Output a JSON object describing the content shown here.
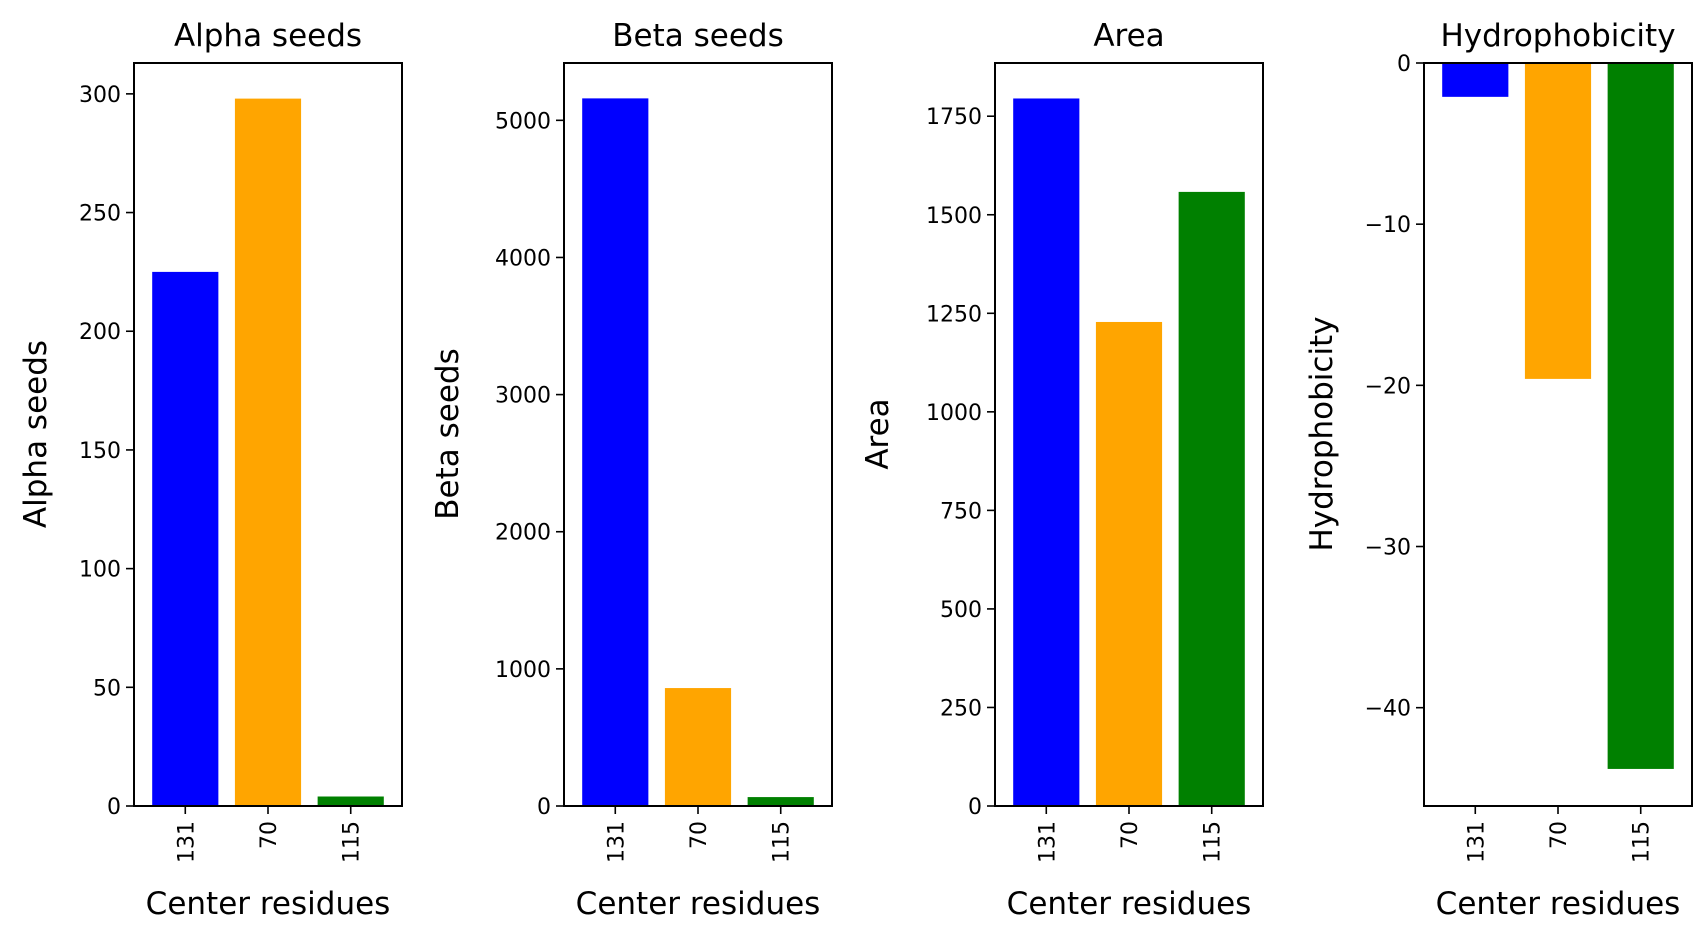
{
  "figure": {
    "categories": [
      "131",
      "70",
      "115"
    ],
    "bar_colors": [
      "#0000ff",
      "#ffa500",
      "#008000"
    ]
  },
  "chart_data": [
    {
      "type": "bar",
      "title": "Alpha seeds",
      "xlabel": "Center residues",
      "ylabel": "Alpha seeds",
      "categories": [
        "131",
        "70",
        "115"
      ],
      "values": [
        225,
        298,
        4
      ],
      "ylim": [
        0,
        313
      ],
      "yticks": [
        0,
        50,
        100,
        150,
        200,
        250,
        300
      ],
      "ytick_labels": [
        "0",
        "50",
        "100",
        "150",
        "200",
        "250",
        "300"
      ],
      "colors": [
        "#0000ff",
        "#ffa500",
        "#008000"
      ],
      "grid": false
    },
    {
      "type": "bar",
      "title": "Beta seeds",
      "xlabel": "Center residues",
      "ylabel": "Beta seeds",
      "categories": [
        "131",
        "70",
        "115"
      ],
      "values": [
        5160,
        860,
        65
      ],
      "ylim": [
        0,
        5418
      ],
      "yticks": [
        0,
        1000,
        2000,
        3000,
        4000,
        5000
      ],
      "ytick_labels": [
        "0",
        "1000",
        "2000",
        "3000",
        "4000",
        "5000"
      ],
      "colors": [
        "#0000ff",
        "#ffa500",
        "#008000"
      ],
      "grid": false
    },
    {
      "type": "bar",
      "title": "Area",
      "xlabel": "Center residues",
      "ylabel": "Area",
      "categories": [
        "131",
        "70",
        "115"
      ],
      "values": [
        1795,
        1228,
        1558
      ],
      "ylim": [
        0,
        1885
      ],
      "yticks": [
        0,
        250,
        500,
        750,
        1000,
        1250,
        1500,
        1750
      ],
      "ytick_labels": [
        "0",
        "250",
        "500",
        "750",
        "1000",
        "1250",
        "1500",
        "1750"
      ],
      "colors": [
        "#0000ff",
        "#ffa500",
        "#008000"
      ],
      "grid": false
    },
    {
      "type": "bar",
      "title": "Hydrophobicity",
      "xlabel": "Center residues",
      "ylabel": "Hydrophobicity",
      "categories": [
        "131",
        "70",
        "115"
      ],
      "values": [
        -2.1,
        -19.6,
        -43.8
      ],
      "ylim": [
        -46.1,
        0
      ],
      "yticks": [
        0,
        -10,
        -20,
        -30,
        -40
      ],
      "ytick_labels": [
        "0",
        "−10",
        "−20",
        "−30",
        "−40"
      ],
      "colors": [
        "#0000ff",
        "#ffa500",
        "#008000"
      ],
      "grid": false
    }
  ]
}
